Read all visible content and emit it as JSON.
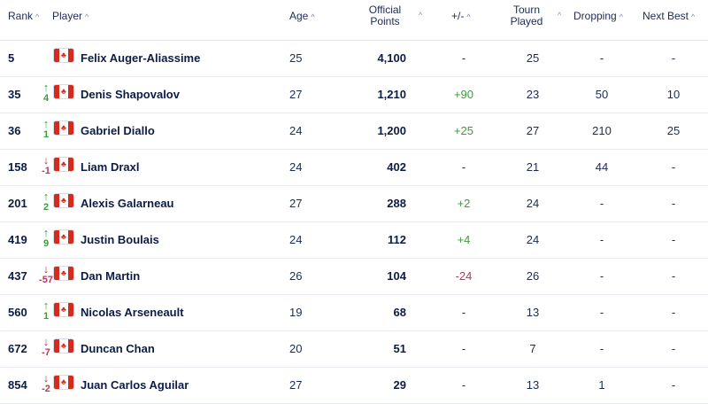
{
  "headers": {
    "rank": "Rank",
    "player": "Player",
    "age": "Age",
    "points_line1": "Official",
    "points_line2": "Points",
    "plusminus": "+/-",
    "tourn_line1": "Tourn",
    "tourn_line2": "Played",
    "dropping": "Dropping",
    "next_best": "Next Best",
    "sort_icon": "^"
  },
  "flag_icon": "canada-flag",
  "colors": {
    "up": "#3d9a3d",
    "down": "#b23a57",
    "flag_red": "#d52b1e"
  },
  "rows": [
    {
      "rank": "5",
      "dir": "",
      "move": "",
      "name": "Felix Auger-Aliassime",
      "age": "25",
      "points": "4,100",
      "pm": "-",
      "pm_sign": "",
      "tourn": "25",
      "dropping": "-",
      "next_best": "-"
    },
    {
      "rank": "35",
      "dir": "up",
      "move": "4",
      "name": "Denis Shapovalov",
      "age": "27",
      "points": "1,210",
      "pm": "+90",
      "pm_sign": "pos",
      "tourn": "23",
      "dropping": "50",
      "next_best": "10"
    },
    {
      "rank": "36",
      "dir": "up",
      "move": "1",
      "name": "Gabriel Diallo",
      "age": "24",
      "points": "1,200",
      "pm": "+25",
      "pm_sign": "pos",
      "tourn": "27",
      "dropping": "210",
      "next_best": "25"
    },
    {
      "rank": "158",
      "dir": "down",
      "move": "-1",
      "name": "Liam Draxl",
      "age": "24",
      "points": "402",
      "pm": "-",
      "pm_sign": "",
      "tourn": "21",
      "dropping": "44",
      "next_best": "-"
    },
    {
      "rank": "201",
      "dir": "up",
      "move": "2",
      "name": "Alexis Galarneau",
      "age": "27",
      "points": "288",
      "pm": "+2",
      "pm_sign": "pos",
      "tourn": "24",
      "dropping": "-",
      "next_best": "-"
    },
    {
      "rank": "419",
      "dir": "up",
      "move": "9",
      "name": "Justin Boulais",
      "age": "24",
      "points": "112",
      "pm": "+4",
      "pm_sign": "pos",
      "tourn": "24",
      "dropping": "-",
      "next_best": "-"
    },
    {
      "rank": "437",
      "dir": "down",
      "move": "-57",
      "name": "Dan Martin",
      "age": "26",
      "points": "104",
      "pm": "-24",
      "pm_sign": "neg",
      "tourn": "26",
      "dropping": "-",
      "next_best": "-"
    },
    {
      "rank": "560",
      "dir": "up",
      "move": "1",
      "name": "Nicolas Arseneault",
      "age": "19",
      "points": "68",
      "pm": "-",
      "pm_sign": "",
      "tourn": "13",
      "dropping": "-",
      "next_best": "-"
    },
    {
      "rank": "672",
      "dir": "down",
      "move": "-7",
      "name": "Duncan Chan",
      "age": "20",
      "points": "51",
      "pm": "-",
      "pm_sign": "",
      "tourn": "7",
      "dropping": "-",
      "next_best": "-"
    },
    {
      "rank": "854",
      "dir": "down",
      "move": "-2",
      "name": "Juan Carlos Aguilar",
      "age": "27",
      "points": "29",
      "pm": "-",
      "pm_sign": "",
      "tourn": "13",
      "dropping": "1",
      "next_best": "-"
    }
  ]
}
